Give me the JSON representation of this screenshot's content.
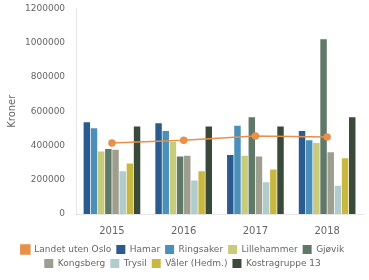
{
  "chart_data": {
    "type": "bar",
    "categories": [
      "2015",
      "2016",
      "2017",
      "2018"
    ],
    "series": [
      {
        "name": "Hamar",
        "color": "#2B5B8E",
        "values": [
          535000,
          530000,
          345000,
          485000
        ]
      },
      {
        "name": "Ringsaker",
        "color": "#4A90B8",
        "values": [
          500000,
          485000,
          515000,
          430000
        ]
      },
      {
        "name": "Lillehammer",
        "color": "#C8CC7A",
        "values": [
          365000,
          420000,
          340000,
          415000
        ]
      },
      {
        "name": "Gjøvik",
        "color": "#607868",
        "values": [
          380000,
          335000,
          565000,
          1020000
        ]
      },
      {
        "name": "Kongsberg",
        "color": "#9E9E8E",
        "values": [
          375000,
          340000,
          335000,
          360000
        ]
      },
      {
        "name": "Trysil",
        "color": "#B0CCCC",
        "values": [
          250000,
          195000,
          185000,
          165000
        ]
      },
      {
        "name": "Våler (Hedm.)",
        "color": "#C8B840",
        "values": [
          295000,
          250000,
          260000,
          325000
        ]
      },
      {
        "name": "Kostragruppe 13",
        "color": "#3A4A3A",
        "values": [
          510000,
          510000,
          510000,
          565000
        ]
      },
      {
        "name": "Landet uten Oslo",
        "type": "line",
        "marker": "circle",
        "color": "#E8904A",
        "values": [
          415000,
          430000,
          455000,
          450000
        ]
      }
    ],
    "ylabel": "Kroner",
    "ylim": [
      0,
      1200000
    ],
    "yticks": [
      0,
      200000,
      400000,
      600000,
      800000,
      1000000,
      1200000
    ],
    "grid": false,
    "legend": "bottom"
  }
}
